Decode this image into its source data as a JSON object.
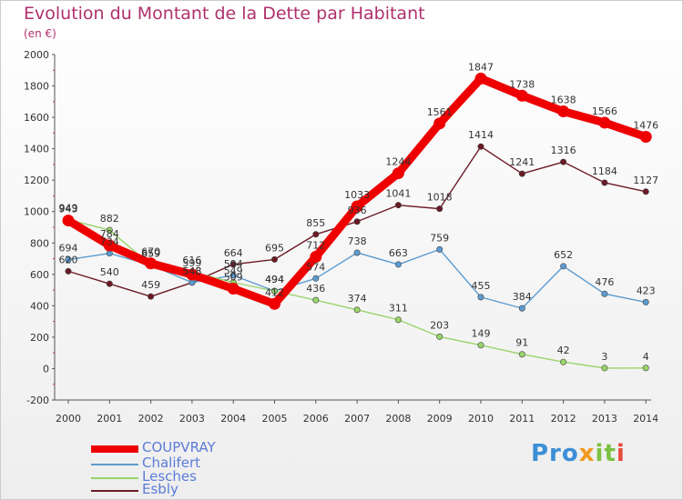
{
  "title": "Evolution du Montant de la Dette par Habitant",
  "unit": "(en €)",
  "logo": {
    "text": "Proxiti",
    "parts": [
      "Pro",
      "x",
      "it",
      "i"
    ]
  },
  "chart_data": {
    "type": "line",
    "x": [
      "2000",
      "2001",
      "2002",
      "2003",
      "2004",
      "2005",
      "2006",
      "2007",
      "2008",
      "2009",
      "2010",
      "2011",
      "2012",
      "2013",
      "2014"
    ],
    "ylim": [
      -200,
      2000
    ],
    "yticks": [
      "-200",
      "0",
      "200",
      "400",
      "600",
      "800",
      "1000",
      "1200",
      "1400",
      "1600",
      "1800",
      "2000"
    ],
    "grid": false,
    "legend_position": "bottom-left",
    "series": [
      {
        "name": "COUPVRAY",
        "color": "#ee0000",
        "values": [
          943,
          784,
          670,
          599,
          509,
          412,
          712,
          1033,
          1244,
          1561,
          1847,
          1738,
          1638,
          1566,
          1476
        ]
      },
      {
        "name": "Chalifert",
        "color": "#5b9bd0",
        "values": [
          694,
          734,
          659,
          548,
          594,
          494,
          574,
          738,
          663,
          759,
          455,
          384,
          652,
          476,
          423
        ]
      },
      {
        "name": "Lesches",
        "color": "#98d46a",
        "values": [
          949,
          882,
          659,
          616,
          549,
          494,
          436,
          374,
          311,
          203,
          149,
          91,
          42,
          3,
          4
        ]
      },
      {
        "name": "Esbly",
        "color": "#6b1a26",
        "values": [
          620,
          540,
          459,
          548,
          664,
          695,
          855,
          936,
          1041,
          1018,
          1414,
          1241,
          1316,
          1184,
          1127
        ]
      }
    ]
  }
}
